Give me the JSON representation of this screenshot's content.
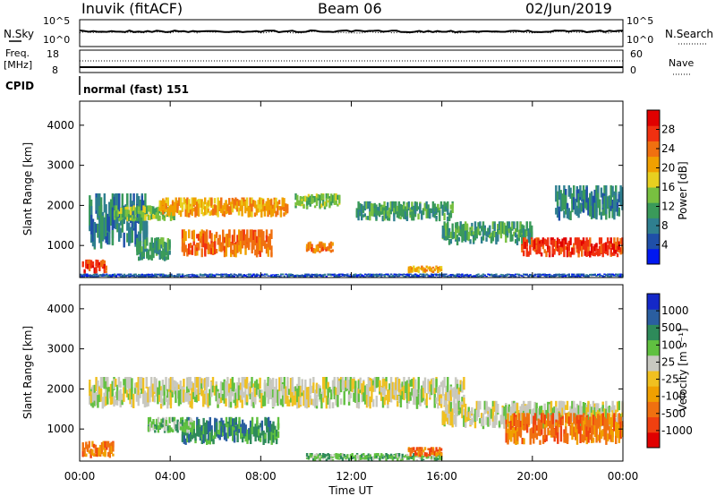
{
  "header": {
    "title": "Inuvik (fitACF)",
    "beam": "Beam 06",
    "date": "02/Jun/2019"
  },
  "top_panels": {
    "nsky_label": "N.Sky",
    "nsky_ticks": [
      "10^5",
      "10^0"
    ],
    "nsearch_label": "N.Search",
    "nsearch_ticks": [
      "10^5",
      "10^0"
    ],
    "freq_label": "Freq.",
    "freq_unit": "[MHz]",
    "freq_ticks": [
      "18",
      "8"
    ],
    "nave_label": "Nave",
    "nave_ticks": [
      "60",
      "0"
    ],
    "cpid_label": "CPID",
    "cpid_value": "normal (fast) 151"
  },
  "colors": {
    "power_scale": [
      "#0018f0",
      "#1f4fa8",
      "#2f7f8f",
      "#3a9a5a",
      "#78c040",
      "#e8d020",
      "#f0a000",
      "#f07010",
      "#f03010",
      "#e00000"
    ],
    "velocity_scale": [
      "#e00000",
      "#f04010",
      "#f07010",
      "#f0a000",
      "#f0c020",
      "#c8c8c0",
      "#60c040",
      "#2e8a5a",
      "#2a5ea0",
      "#1428c8"
    ]
  },
  "chart_data": [
    {
      "type": "heatmap",
      "name": "power",
      "ylabel": "Slant Range [km]",
      "yticks": [
        "1000",
        "2000",
        "3000",
        "4000"
      ],
      "ylim": [
        200,
        4600
      ],
      "xlim_hours": [
        0,
        24
      ],
      "colorbar_label": "Power [dB]",
      "colorbar_ticks": [
        "4",
        "8",
        "12",
        "16",
        "20",
        "24",
        "28"
      ],
      "colorbar_range": [
        0,
        32
      ],
      "bands": [
        {
          "t0": 0.1,
          "t1": 1.2,
          "r0": 300,
          "r1": 650,
          "color_index": 8
        },
        {
          "t0": 0.4,
          "t1": 3.0,
          "r0": 900,
          "r1": 2300,
          "color_index": 2
        },
        {
          "t0": 1.5,
          "t1": 4.2,
          "r0": 1600,
          "r1": 2000,
          "color_index": 4
        },
        {
          "t0": 3.5,
          "t1": 9.2,
          "r0": 1700,
          "r1": 2200,
          "color_index": 6
        },
        {
          "t0": 4.5,
          "t1": 8.5,
          "r0": 700,
          "r1": 1400,
          "color_index": 7
        },
        {
          "t0": 2.5,
          "t1": 4.0,
          "r0": 600,
          "r1": 1200,
          "color_index": 3
        },
        {
          "t0": 9.5,
          "t1": 11.5,
          "r0": 1900,
          "r1": 2300,
          "color_index": 4
        },
        {
          "t0": 10.0,
          "t1": 11.2,
          "r0": 800,
          "r1": 1100,
          "color_index": 7
        },
        {
          "t0": 12.2,
          "t1": 16.5,
          "r0": 1600,
          "r1": 2100,
          "color_index": 3
        },
        {
          "t0": 16.0,
          "t1": 20.0,
          "r0": 1000,
          "r1": 1600,
          "color_index": 3
        },
        {
          "t0": 19.5,
          "t1": 24.0,
          "r0": 700,
          "r1": 1200,
          "color_index": 8
        },
        {
          "t0": 21.0,
          "t1": 24.0,
          "r0": 1600,
          "r1": 2500,
          "color_index": 2
        },
        {
          "t0": 14.5,
          "t1": 16.0,
          "r0": 300,
          "r1": 500,
          "color_index": 6
        },
        {
          "t0": 0.0,
          "t1": 24.0,
          "r0": 200,
          "r1": 300,
          "color_index": 1
        }
      ]
    },
    {
      "type": "heatmap",
      "name": "velocity",
      "ylabel": "Slant Range [km]",
      "yticks": [
        "1000",
        "2000",
        "3000",
        "4000"
      ],
      "ylim": [
        200,
        4600
      ],
      "xlim_hours": [
        0,
        24
      ],
      "xticks": [
        "00:00",
        "04:00",
        "08:00",
        "12:00",
        "16:00",
        "20:00",
        "00:00"
      ],
      "xlabel": "Time UT",
      "colorbar_label": "Velocity [m s⁻¹]",
      "colorbar_ticks": [
        "-1000",
        "-500",
        "-100",
        "-25",
        "25",
        "100",
        "500",
        "1000"
      ],
      "bands": [
        {
          "t0": 0.1,
          "t1": 1.5,
          "r0": 250,
          "r1": 700,
          "color_index": 2
        },
        {
          "t0": 0.4,
          "t1": 9.5,
          "r0": 1500,
          "r1": 2300,
          "color_index": 5
        },
        {
          "t0": 4.5,
          "t1": 8.8,
          "r0": 600,
          "r1": 1300,
          "color_index": 7
        },
        {
          "t0": 3.0,
          "t1": 5.0,
          "r0": 900,
          "r1": 1300,
          "color_index": 6
        },
        {
          "t0": 9.5,
          "t1": 17.0,
          "r0": 1500,
          "r1": 2300,
          "color_index": 5
        },
        {
          "t0": 16.0,
          "t1": 24.0,
          "r0": 1000,
          "r1": 1700,
          "color_index": 5
        },
        {
          "t0": 18.8,
          "t1": 24.0,
          "r0": 600,
          "r1": 1400,
          "color_index": 2
        },
        {
          "t0": 10.0,
          "t1": 16.0,
          "r0": 200,
          "r1": 400,
          "color_index": 6
        },
        {
          "t0": 14.5,
          "t1": 16.0,
          "r0": 300,
          "r1": 550,
          "color_index": 2
        }
      ]
    }
  ]
}
